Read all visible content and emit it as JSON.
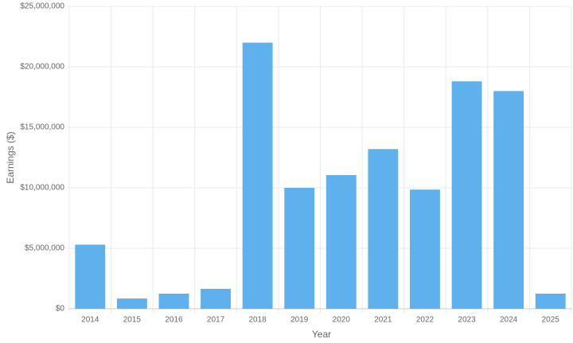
{
  "chart_data": {
    "type": "bar",
    "x_label": "Year",
    "y_label": "Earnings ($)",
    "categories": [
      "2014",
      "2015",
      "2016",
      "2017",
      "2018",
      "2019",
      "2020",
      "2021",
      "2022",
      "2023",
      "2024",
      "2025"
    ],
    "values": [
      5300000,
      850000,
      1250000,
      1650000,
      22000000,
      10000000,
      11050000,
      13200000,
      9850000,
      18800000,
      18000000,
      1250000
    ],
    "color": "#5eb1ec",
    "ylim": [
      0,
      25000000
    ],
    "yticks": [
      {
        "value": 0,
        "label": "$0"
      },
      {
        "value": 5000000,
        "label": "$5,000,000"
      },
      {
        "value": 10000000,
        "label": "$10,000,000"
      },
      {
        "value": 15000000,
        "label": "$15,000,000"
      },
      {
        "value": 20000000,
        "label": "$20,000,000"
      },
      {
        "value": 25000000,
        "label": "$25,000,000"
      }
    ],
    "grid": true
  }
}
